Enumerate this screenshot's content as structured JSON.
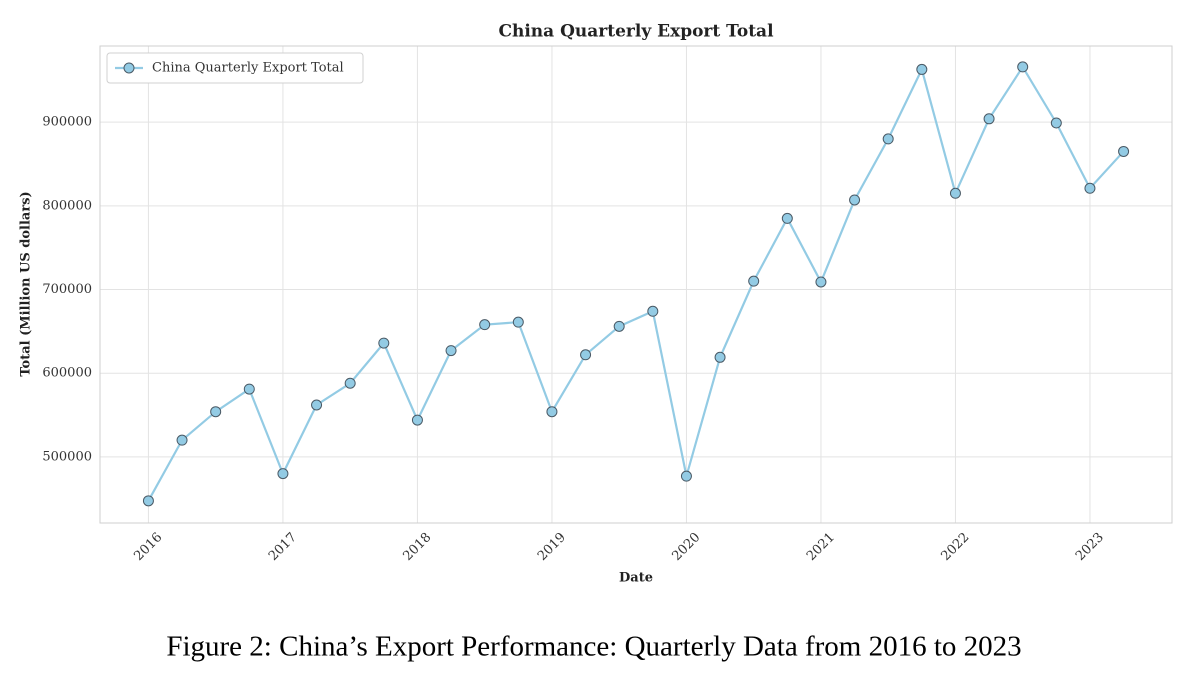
{
  "chart_data": {
    "type": "line",
    "title": "China Quarterly Export Total",
    "x_label": "Date",
    "y_label": "Total (Million US dollars)",
    "caption": "Figure 2: China’s Export Performance: Quarterly Data from 2016 to 2023",
    "x": [
      2016,
      2016.25,
      2016.5,
      2016.75,
      2017,
      2017.25,
      2017.5,
      2017.75,
      2018,
      2018.25,
      2018.5,
      2018.75,
      2019,
      2019.25,
      2019.5,
      2019.75,
      2020,
      2020.25,
      2020.5,
      2020.75,
      2021,
      2021.25,
      2021.5,
      2021.75,
      2022,
      2022.25,
      2022.5,
      2022.75,
      2023,
      2023.25
    ],
    "series": [
      {
        "name": "China Quarterly Export Total",
        "color": "#93cbe4",
        "values": [
          447500,
          520000,
          554000,
          581000,
          480000,
          562000,
          588000,
          636000,
          544000,
          627000,
          658000,
          661000,
          554000,
          622000,
          656000,
          674000,
          477000,
          619000,
          710000,
          785000,
          709000,
          807000,
          880000,
          963000,
          815000,
          904000,
          966000,
          899000,
          821000,
          865000
        ]
      }
    ],
    "marker_edge_color": "#4a5a66",
    "xlim": [
      2015.64,
      2023.61
    ],
    "xticks": [
      2016,
      2017,
      2018,
      2019,
      2020,
      2021,
      2022,
      2023
    ],
    "ylim": [
      421000,
      991000
    ],
    "yticks": [
      500000,
      600000,
      700000,
      800000,
      900000
    ],
    "grid": true,
    "legend": "upper left"
  }
}
